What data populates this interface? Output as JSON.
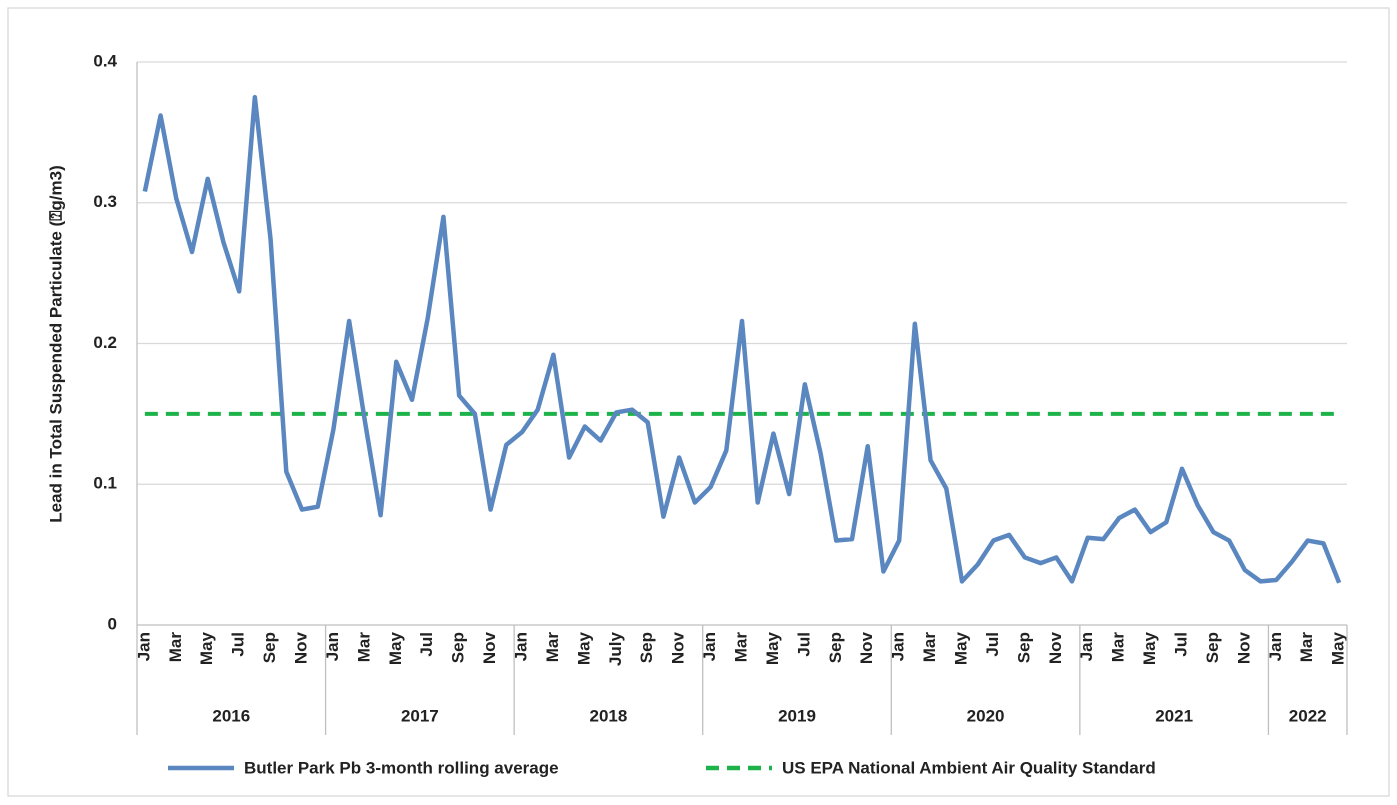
{
  "chart_data": {
    "type": "line",
    "y_label": "Lead in Total Suspended Particulate (⍰g/m3)",
    "categories": [
      "Jan",
      null,
      "Mar",
      null,
      "May",
      null,
      "Jul",
      null,
      "Sep",
      null,
      "Nov",
      null,
      "Jan",
      null,
      "Mar",
      null,
      "May",
      null,
      "Jul",
      null,
      "Sep",
      null,
      "Nov",
      null,
      "Jan",
      null,
      "Mar",
      null,
      "May",
      null,
      "July",
      null,
      "Sep",
      null,
      "Nov",
      null,
      "Jan",
      null,
      "Mar",
      null,
      "May",
      null,
      "Jul",
      null,
      "Sep",
      null,
      "Nov",
      null,
      "Jan",
      null,
      "Mar",
      null,
      "May",
      null,
      "Jul",
      null,
      "Sep",
      null,
      "Nov",
      null,
      "Jan",
      null,
      "Mar",
      null,
      "May",
      null,
      "Jul",
      null,
      "Sep",
      null,
      "Nov",
      null,
      "Jan",
      null,
      "Mar",
      null,
      "May"
    ],
    "groups": [
      {
        "label": "2016",
        "span": 12
      },
      {
        "label": "2017",
        "span": 12
      },
      {
        "label": "2018",
        "span": 12
      },
      {
        "label": "2019",
        "span": 12
      },
      {
        "label": "2020",
        "span": 12
      },
      {
        "label": "2021",
        "span": 12
      },
      {
        "label": "2022",
        "span": 5
      }
    ],
    "series": [
      {
        "name": "Butler Park Pb 3-month rolling average",
        "color": "#5b87c0",
        "dash": false,
        "values": [
          0.308,
          0.362,
          0.303,
          0.265,
          0.317,
          0.272,
          0.237,
          0.375,
          0.274,
          0.109,
          0.082,
          0.084,
          0.139,
          0.216,
          0.145,
          0.078,
          0.187,
          0.16,
          0.218,
          0.29,
          0.163,
          0.15,
          0.082,
          0.128,
          0.137,
          0.153,
          0.192,
          0.119,
          0.141,
          0.131,
          0.151,
          0.153,
          0.144,
          0.077,
          0.119,
          0.087,
          0.098,
          0.124,
          0.216,
          0.087,
          0.136,
          0.093,
          0.171,
          0.122,
          0.06,
          0.061,
          0.127,
          0.038,
          0.06,
          0.214,
          0.117,
          0.097,
          0.031,
          0.043,
          0.06,
          0.064,
          0.048,
          0.044,
          0.048,
          0.031,
          0.062,
          0.061,
          0.076,
          0.082,
          0.066,
          0.073,
          0.111,
          0.085,
          0.066,
          0.06,
          0.039,
          0.031,
          0.032,
          0.045,
          0.06,
          0.058,
          0.03
        ]
      },
      {
        "name": "US EPA National Ambient Air Quality Standard",
        "color": "#1db34a",
        "dash": true,
        "values": [
          0.15,
          0.15,
          0.15,
          0.15,
          0.15,
          0.15,
          0.15,
          0.15,
          0.15,
          0.15,
          0.15,
          0.15,
          0.15,
          0.15,
          0.15,
          0.15,
          0.15,
          0.15,
          0.15,
          0.15,
          0.15,
          0.15,
          0.15,
          0.15,
          0.15,
          0.15,
          0.15,
          0.15,
          0.15,
          0.15,
          0.15,
          0.15,
          0.15,
          0.15,
          0.15,
          0.15,
          0.15,
          0.15,
          0.15,
          0.15,
          0.15,
          0.15,
          0.15,
          0.15,
          0.15,
          0.15,
          0.15,
          0.15,
          0.15,
          0.15,
          0.15,
          0.15,
          0.15,
          0.15,
          0.15,
          0.15,
          0.15,
          0.15,
          0.15,
          0.15,
          0.15,
          0.15,
          0.15,
          0.15,
          0.15,
          0.15,
          0.15,
          0.15,
          0.15,
          0.15,
          0.15,
          0.15,
          0.15,
          0.15,
          0.15,
          0.15,
          0.15
        ]
      }
    ],
    "ylim": [
      0,
      0.4
    ],
    "yticks": [
      0,
      0.1,
      0.2,
      0.3,
      0.4
    ],
    "grid": true,
    "legend": "bottom"
  }
}
